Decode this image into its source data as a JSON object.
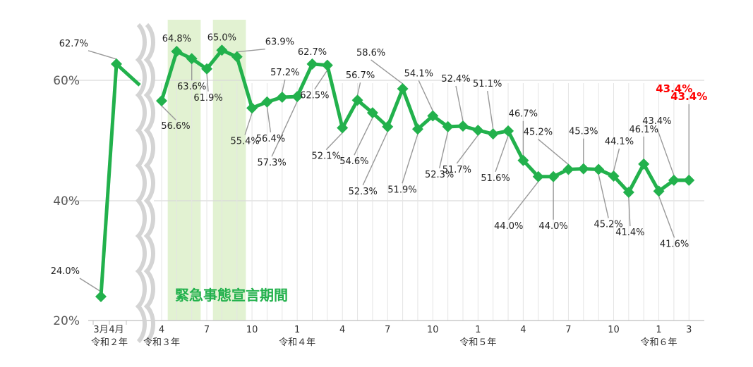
{
  "chart_data": {
    "type": "line",
    "title": "",
    "xlabel": "",
    "ylabel": "",
    "y_ticks": [
      "60%",
      "40%",
      "20%"
    ],
    "ylim": [
      20,
      67
    ],
    "grid": "horizontal at 40% and 60%; vertical line at every month",
    "line_color": "#22b14c",
    "band_color": "#e2f2d2",
    "highlight_color": "#ff0000",
    "axis_break": "between 令和2年4月 and 令和3年4月",
    "band_label": "緊急事態宣言期間",
    "band_periods": [
      {
        "from": "令和3年5月",
        "to": "令和3年6月"
      },
      {
        "from": "令和3年8月",
        "to": "令和3年9月"
      }
    ],
    "x_tick_labels": [
      {
        "month": "3月",
        "era": "令和２年"
      },
      {
        "month": "4月",
        "era": ""
      },
      {
        "month": "4",
        "era": "令和３年"
      },
      {
        "month": "7",
        "era": ""
      },
      {
        "month": "10",
        "era": ""
      },
      {
        "month": "1",
        "era": "令和４年"
      },
      {
        "month": "4",
        "era": ""
      },
      {
        "month": "7",
        "era": ""
      },
      {
        "month": "10",
        "era": ""
      },
      {
        "month": "1",
        "era": "令和５年"
      },
      {
        "month": "4",
        "era": ""
      },
      {
        "month": "7",
        "era": ""
      },
      {
        "month": "10",
        "era": ""
      },
      {
        "month": "1",
        "era": "令和６年"
      },
      {
        "month": "3",
        "era": ""
      }
    ],
    "series": [
      {
        "x": [
          "令和2年3月",
          "令和2年4月",
          "令和3年4月",
          "令和3年5月",
          "令和3年6月",
          "令和3年7月",
          "令和3年8月",
          "令和3年9月",
          "令和3年10月",
          "令和3年11月",
          "令和3年12月",
          "令和4年1月",
          "令和4年2月",
          "令和4年3月",
          "令和4年4月",
          "令和4年5月",
          "令和4年6月",
          "令和4年7月",
          "令和4年8月",
          "令和4年9月",
          "令和4年10月",
          "令和4年11月",
          "令和4年12月",
          "令和5年1月",
          "令和5年2月",
          "令和5年3月",
          "令和5年4月",
          "令和5年5月",
          "令和5年6月",
          "令和5年7月",
          "令和5年8月",
          "令和5年9月",
          "令和5年10月",
          "令和5年11月",
          "令和5年12月",
          "令和6年1月",
          "令和6年2月",
          "令和6年3月"
        ],
        "values": [
          24.0,
          62.7,
          56.6,
          64.8,
          63.6,
          61.9,
          65.0,
          63.9,
          55.4,
          56.4,
          57.2,
          57.3,
          62.7,
          62.5,
          52.1,
          56.7,
          54.6,
          52.3,
          58.6,
          51.9,
          54.1,
          52.3,
          52.4,
          51.7,
          51.1,
          51.6,
          46.7,
          44.0,
          44.0,
          45.2,
          45.3,
          45.2,
          44.1,
          41.4,
          46.1,
          41.6,
          43.4,
          43.4
        ],
        "labels": [
          "24.0%",
          "62.7%",
          "56.6%",
          "64.8%",
          "63.6%",
          "61.9%",
          "65.0%",
          "63.9%",
          "55.4%",
          "56.4%",
          "57.2%",
          "57.3%",
          "62.7%",
          "62.5%",
          "52.1%",
          "56.7%",
          "54.6%",
          "52.3%",
          "58.6%",
          "51.9%",
          "54.1%",
          "52.3%",
          "52.4%",
          "51.7%",
          "51.1%",
          "51.6%",
          "46.7%",
          "44.0%",
          "44.0%",
          "45.2%",
          "45.3%",
          "45.2%",
          "44.1%",
          "41.4%",
          "46.1%",
          "41.6%",
          "43.4%",
          "43.4%"
        ],
        "highlight_index": 37
      }
    ]
  }
}
